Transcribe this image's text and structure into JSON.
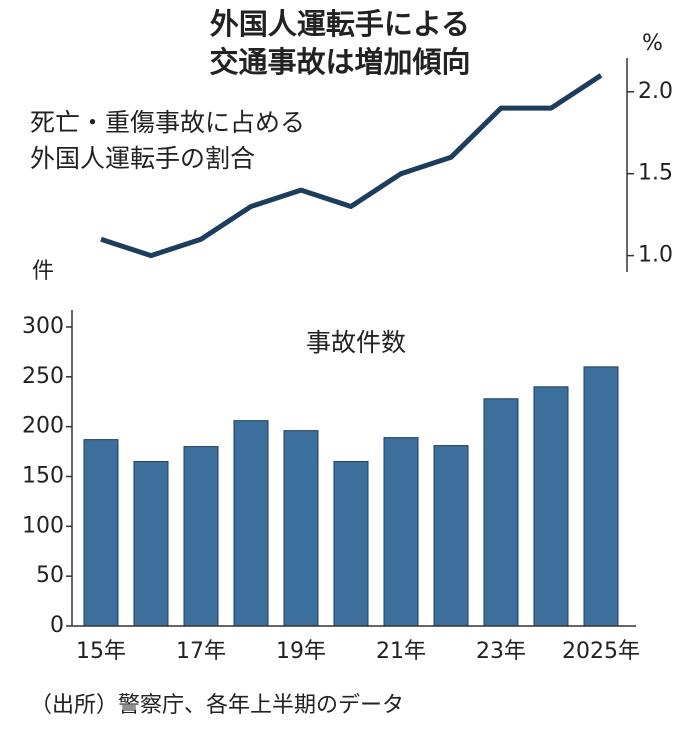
{
  "title": [
    "外国人運転手による",
    "交通事故は増加傾向"
  ],
  "source": "（出所）警察庁、各年上半期のデータ",
  "chart_data": [
    {
      "type": "line",
      "label": [
        "死亡・重傷事故に占める",
        "外国人運転手の割合"
      ],
      "unit": "%",
      "values": [
        1.1,
        1.0,
        1.1,
        1.3,
        1.4,
        1.3,
        1.5,
        1.6,
        1.9,
        1.9,
        2.1
      ],
      "color": "#1c3d5e",
      "ylim": [
        0.9,
        2.2
      ],
      "yticks": [
        {
          "value": 1,
          "label": "1.0"
        },
        1.5,
        {
          "value": 2,
          "label": "2.0"
        }
      ]
    },
    {
      "type": "bar",
      "label": "事故件数",
      "unit": "件",
      "categories": [
        "15年",
        null,
        "17年",
        null,
        "19年",
        null,
        "21年",
        null,
        "23年",
        null,
        "2025年"
      ],
      "values": [
        187,
        165,
        180,
        206,
        196,
        165,
        189,
        181,
        228,
        240,
        260
      ],
      "color": "#3d6f9c",
      "ylim": [
        0,
        300
      ],
      "yticks": [
        0,
        50,
        100,
        150,
        200,
        250,
        300
      ]
    }
  ]
}
